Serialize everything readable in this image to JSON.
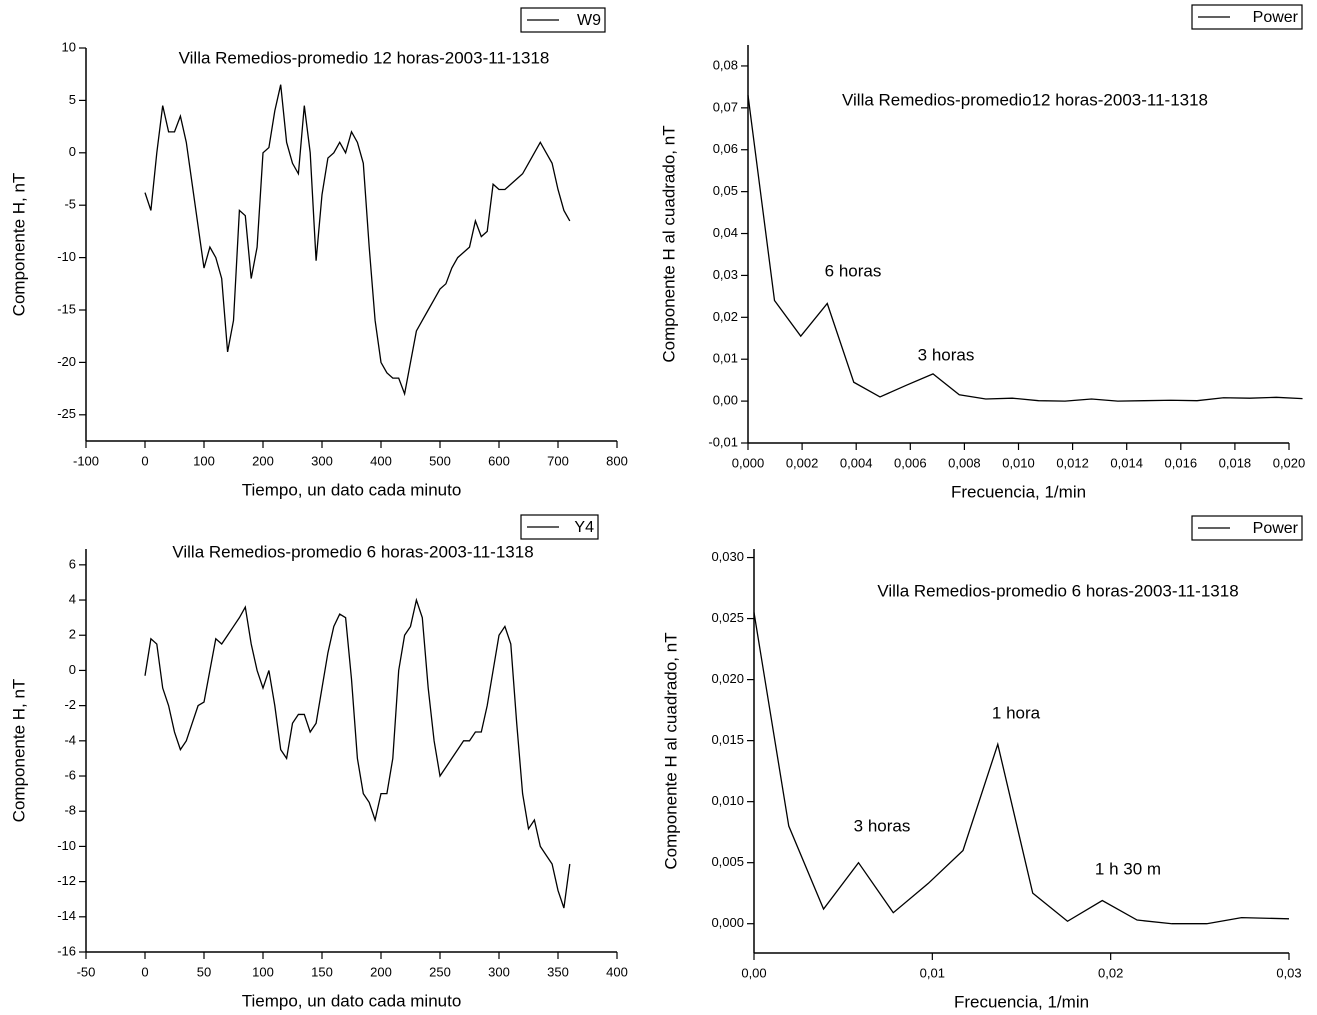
{
  "chart_data": [
    {
      "type": "line",
      "title": "Villa Remedios-promedio 12 horas-2003-11-1318",
      "x_label": "Tiempo, un dato cada minuto",
      "y_label": "Componente H, nT",
      "xlim": [
        -100,
        800
      ],
      "ylim": [
        -27.5,
        10
      ],
      "xticks": [
        -100,
        0,
        100,
        200,
        300,
        400,
        500,
        600,
        700,
        800
      ],
      "yticks": [
        -25,
        -20,
        -15,
        -10,
        -5,
        0,
        5,
        10
      ],
      "legend": "top-right",
      "x": [
        0,
        10,
        20,
        30,
        40,
        50,
        60,
        70,
        80,
        90,
        100,
        110,
        120,
        130,
        140,
        150,
        160,
        170,
        180,
        190,
        200,
        210,
        220,
        230,
        240,
        250,
        260,
        270,
        280,
        290,
        300,
        310,
        320,
        330,
        340,
        350,
        360,
        370,
        380,
        390,
        400,
        410,
        420,
        430,
        440,
        450,
        460,
        470,
        480,
        490,
        500,
        510,
        520,
        530,
        540,
        550,
        560,
        570,
        580,
        590,
        600,
        610,
        620,
        630,
        640,
        650,
        660,
        670,
        680,
        690,
        700,
        710,
        720
      ],
      "series": [
        {
          "name": "W9",
          "color": "#000000",
          "values": [
            -3.8,
            -5.5,
            0,
            4.5,
            2,
            2,
            3.5,
            1,
            -3,
            -7,
            -11,
            -9,
            -10,
            -12,
            -19,
            -16,
            -5.5,
            -6,
            -12,
            -9,
            0,
            0.5,
            4,
            6.5,
            1,
            -1,
            -2,
            4.5,
            0,
            -10.3,
            -4,
            -0.5,
            0,
            1,
            0,
            2,
            1,
            -1,
            -9,
            -16,
            -20,
            -21,
            -21.5,
            -21.5,
            -23,
            -20,
            -17,
            -16,
            -15,
            -14,
            -13,
            -12.5,
            -11,
            -10,
            -9.5,
            -9,
            -6.5,
            -8,
            -7.5,
            -3,
            -3.5,
            -3.5,
            -3,
            -2.5,
            -2,
            -1,
            0,
            1,
            0,
            -1,
            -3.5,
            -5.5,
            -6.5
          ]
        }
      ]
    },
    {
      "type": "line",
      "title": "Villa Remedios-promedio12 horas-2003-11-1318",
      "x_label": "Frecuencia, 1/min",
      "y_label": "Componente H al cuadrado, nT",
      "xlim": [
        0,
        0.02
      ],
      "ylim": [
        -0.01,
        0.085
      ],
      "xticks": [
        {
          "value": 0,
          "label": "0,000"
        },
        {
          "value": 0.002,
          "label": "0,002"
        },
        {
          "value": 0.004,
          "label": "0,004"
        },
        {
          "value": 0.006,
          "label": "0,006"
        },
        {
          "value": 0.008,
          "label": "0,008"
        },
        {
          "value": 0.01,
          "label": "0,010"
        },
        {
          "value": 0.012,
          "label": "0,012"
        },
        {
          "value": 0.014,
          "label": "0,014"
        },
        {
          "value": 0.016,
          "label": "0,016"
        },
        {
          "value": 0.018,
          "label": "0,018"
        },
        {
          "value": 0.02,
          "label": "0,020"
        }
      ],
      "yticks": [
        {
          "value": -0.01,
          "label": "-0,01"
        },
        {
          "value": 0,
          "label": "0,00"
        },
        {
          "value": 0.01,
          "label": "0,01"
        },
        {
          "value": 0.02,
          "label": "0,02"
        },
        {
          "value": 0.03,
          "label": "0,03"
        },
        {
          "value": 0.04,
          "label": "0,04"
        },
        {
          "value": 0.05,
          "label": "0,05"
        },
        {
          "value": 0.06,
          "label": "0,06"
        },
        {
          "value": 0.07,
          "label": "0,07"
        },
        {
          "value": 0.08,
          "label": "0,08"
        }
      ],
      "legend": "top-right",
      "annotations": [
        "6 horas",
        "3 horas"
      ],
      "x": [
        0,
        0.00098,
        0.00195,
        0.00293,
        0.00391,
        0.00488,
        0.00586,
        0.00684,
        0.00781,
        0.00879,
        0.00977,
        0.01074,
        0.01172,
        0.0127,
        0.01367,
        0.01465,
        0.01563,
        0.0166,
        0.01758,
        0.01855,
        0.01953,
        0.0205
      ],
      "series": [
        {
          "name": "Power",
          "color": "#000000",
          "values": [
            0.073,
            0.024,
            0.0155,
            0.0233,
            0.0045,
            0.001,
            0.0038,
            0.0065,
            0.0015,
            0.0005,
            0.0007,
            0.0001,
            0,
            0.0005,
            0,
            0.0001,
            0.0002,
            0.0001,
            0.0008,
            0.0007,
            0.0009,
            0.0006
          ]
        }
      ]
    },
    {
      "type": "line",
      "title": "Villa Remedios-promedio 6 horas-2003-11-1318",
      "x_label": "Tiempo, un dato cada minuto",
      "y_label": "Componente H, nT",
      "xlim": [
        -50,
        400
      ],
      "ylim": [
        -16,
        6.9
      ],
      "xticks": [
        -50,
        0,
        50,
        100,
        150,
        200,
        250,
        300,
        350,
        400
      ],
      "yticks": [
        -16,
        -14,
        -12,
        -10,
        -8,
        -6,
        -4,
        -2,
        0,
        2,
        4,
        6
      ],
      "legend": "top-right",
      "x": [
        0,
        5,
        10,
        15,
        20,
        25,
        30,
        35,
        40,
        45,
        50,
        55,
        60,
        65,
        70,
        75,
        80,
        85,
        90,
        95,
        100,
        105,
        110,
        115,
        120,
        125,
        130,
        135,
        140,
        145,
        150,
        155,
        160,
        165,
        170,
        175,
        180,
        185,
        190,
        195,
        200,
        205,
        210,
        215,
        220,
        225,
        230,
        235,
        240,
        245,
        250,
        255,
        260,
        265,
        270,
        275,
        280,
        285,
        290,
        295,
        300,
        305,
        310,
        315,
        320,
        325,
        330,
        335,
        340,
        345,
        350,
        355,
        360
      ],
      "series": [
        {
          "name": "Y4",
          "color": "#000000",
          "values": [
            -0.3,
            1.8,
            1.5,
            -1,
            -2,
            -3.5,
            -4.5,
            -4,
            -3,
            -2,
            -1.8,
            0,
            1.8,
            1.5,
            2,
            2.5,
            3,
            3.6,
            1.5,
            0,
            -1,
            0,
            -2,
            -4.5,
            -5,
            -3,
            -2.5,
            -2.5,
            -3.5,
            -3,
            -1,
            1,
            2.5,
            3.2,
            3,
            -0.5,
            -5,
            -7,
            -7.5,
            -8.5,
            -7,
            -7,
            -5,
            0,
            2,
            2.5,
            4,
            3,
            -1,
            -4,
            -6,
            -5.5,
            -5,
            -4.5,
            -4,
            -4,
            -3.5,
            -3.5,
            -2,
            0,
            2,
            2.5,
            1.5,
            -3,
            -7,
            -9,
            -8.5,
            -10,
            -10.5,
            -11,
            -12.5,
            -13.5,
            -11
          ]
        }
      ]
    },
    {
      "type": "line",
      "title": "Villa Remedios-promedio 6 horas-2003-11-1318",
      "x_label": "Frecuencia, 1/min",
      "y_label": "Componente H al cuadrado, nT",
      "xlim": [
        0,
        0.03
      ],
      "ylim": [
        -0.0024,
        0.0307
      ],
      "xticks": [
        {
          "value": 0,
          "label": "0,00"
        },
        {
          "value": 0.01,
          "label": "0,01"
        },
        {
          "value": 0.02,
          "label": "0,02"
        },
        {
          "value": 0.03,
          "label": "0,03"
        }
      ],
      "yticks": [
        {
          "value": 0,
          "label": "0,000"
        },
        {
          "value": 0.005,
          "label": "0,005"
        },
        {
          "value": 0.01,
          "label": "0,010"
        },
        {
          "value": 0.015,
          "label": "0,015"
        },
        {
          "value": 0.02,
          "label": "0,020"
        },
        {
          "value": 0.025,
          "label": "0,025"
        },
        {
          "value": 0.03,
          "label": "0,030"
        }
      ],
      "legend": "top-right",
      "annotations": [
        "1 hora",
        "3 horas",
        "1 h 30 m"
      ],
      "x": [
        0,
        0.00195,
        0.0039,
        0.00586,
        0.00781,
        0.00977,
        0.01172,
        0.01367,
        0.01563,
        0.01758,
        0.01953,
        0.02148,
        0.02344,
        0.02539,
        0.02734,
        0.03
      ],
      "series": [
        {
          "name": "Power",
          "color": "#000000",
          "values": [
            0.0255,
            0.008,
            0.0012,
            0.005,
            0.0009,
            0.0033,
            0.006,
            0.0147,
            0.0025,
            0.0002,
            0.0019,
            0.0003,
            0,
            0,
            0.0005,
            0.0004
          ]
        }
      ]
    }
  ]
}
